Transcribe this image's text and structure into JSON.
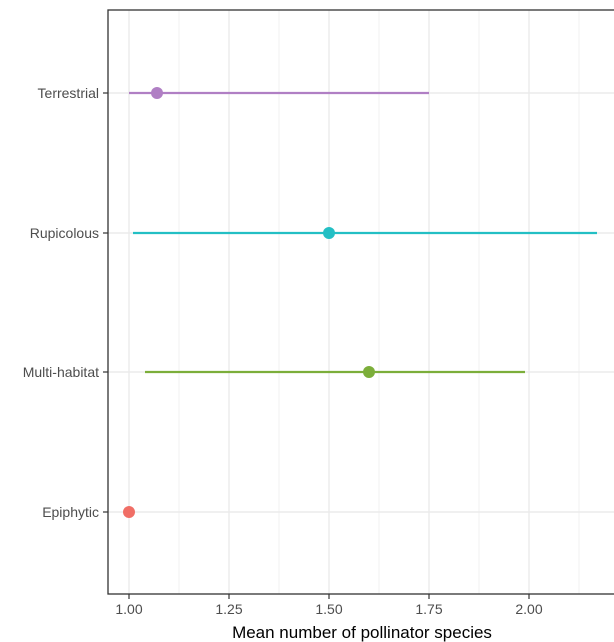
{
  "chart_data": {
    "type": "pointrange",
    "xlabel": "Mean number of pollinator species",
    "ylabel": "",
    "xlim": [
      0.95,
      2.22
    ],
    "x_ticks": [
      {
        "value": 1.0,
        "label": "1.00"
      },
      {
        "value": 1.25,
        "label": "1.25"
      },
      {
        "value": 1.5,
        "label": "1.50"
      },
      {
        "value": 1.75,
        "label": "1.75"
      },
      {
        "value": 2.0,
        "label": "2.00"
      }
    ],
    "categories": [
      "Terrestrial",
      "Rupicolous",
      "Multi-habitat",
      "Epiphytic"
    ],
    "series": [
      {
        "category": "Terrestrial",
        "mean": 1.07,
        "lower": 1.0,
        "upper": 1.75,
        "color": "#b07fc4"
      },
      {
        "category": "Rupicolous",
        "mean": 1.5,
        "lower": 1.01,
        "upper": 2.17,
        "color": "#23bfc4"
      },
      {
        "category": "Multi-habitat",
        "mean": 1.6,
        "lower": 1.04,
        "upper": 1.99,
        "color": "#7cae3a"
      },
      {
        "category": "Epiphytic",
        "mean": 1.0,
        "lower": 1.0,
        "upper": 1.0,
        "color": "#f06e66"
      }
    ],
    "grid": true,
    "legend": "none"
  }
}
